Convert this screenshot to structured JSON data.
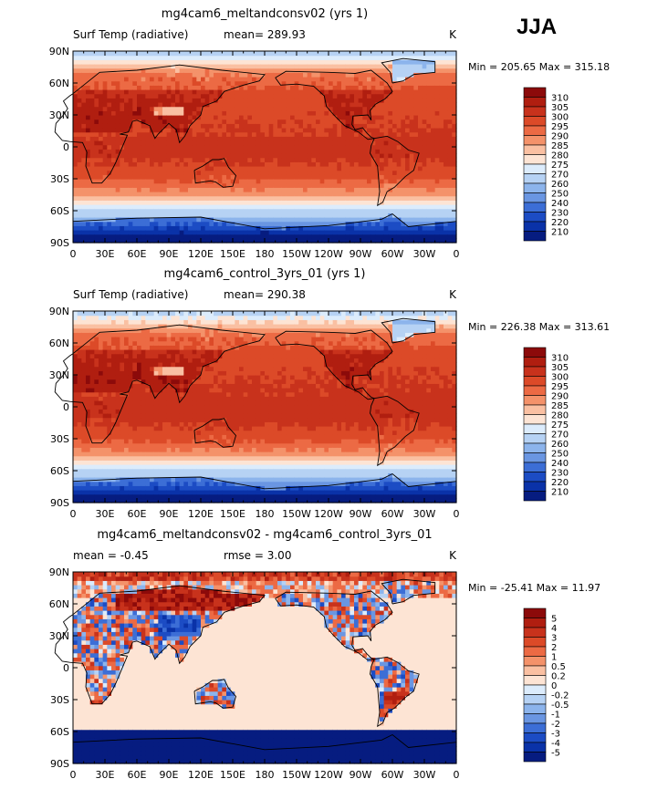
{
  "season": "JJA",
  "chart_data": [
    {
      "type": "heatmap",
      "title": "mg4cam6_meltandconsv02 (yrs 1)",
      "left_label": "Surf Temp (radiative)",
      "stat_label": "mean= 289.93",
      "units": "K",
      "minmax": "Min = 205.65 Max = 315.18",
      "colorbar": {
        "levels": [
          "310",
          "305",
          "300",
          "295",
          "290",
          "285",
          "280",
          "275",
          "270",
          "260",
          "250",
          "240",
          "230",
          "220",
          "210"
        ],
        "colors": [
          "#8c0a0a",
          "#b01e10",
          "#c8321c",
          "#dc4a28",
          "#ec6a44",
          "#f4926a",
          "#fac0a2",
          "#fde4d4",
          "#dcecfc",
          "#b6d2f4",
          "#8cb4ec",
          "#6a96e2",
          "#3c6ed6",
          "#1c4cc4",
          "#0a32a8",
          "#061c80"
        ]
      },
      "xticks": [
        "0",
        "30E",
        "60E",
        "90E",
        "120E",
        "150E",
        "180",
        "150W",
        "120W",
        "90W",
        "60W",
        "30W",
        "0"
      ],
      "yticks": [
        "90N",
        "60N",
        "30N",
        "0",
        "30S",
        "60S",
        "90S"
      ],
      "field": "absolute"
    },
    {
      "type": "heatmap",
      "title": "mg4cam6_control_3yrs_01 (yrs 1)",
      "left_label": "Surf Temp (radiative)",
      "stat_label": "mean= 290.38",
      "units": "K",
      "minmax": "Min = 226.38 Max = 313.61",
      "colorbar": {
        "levels": [
          "310",
          "305",
          "300",
          "295",
          "290",
          "285",
          "280",
          "275",
          "270",
          "260",
          "250",
          "240",
          "230",
          "220",
          "210"
        ],
        "colors": [
          "#8c0a0a",
          "#b01e10",
          "#c8321c",
          "#dc4a28",
          "#ec6a44",
          "#f4926a",
          "#fac0a2",
          "#fde4d4",
          "#dcecfc",
          "#b6d2f4",
          "#8cb4ec",
          "#6a96e2",
          "#3c6ed6",
          "#1c4cc4",
          "#0a32a8",
          "#061c80"
        ]
      },
      "xticks": [
        "0",
        "30E",
        "60E",
        "90E",
        "120E",
        "150E",
        "180",
        "150W",
        "120W",
        "90W",
        "60W",
        "30W",
        "0"
      ],
      "yticks": [
        "90N",
        "60N",
        "30N",
        "0",
        "30S",
        "60S",
        "90S"
      ],
      "field": "absolute"
    },
    {
      "type": "heatmap",
      "title": "mg4cam6_meltandconsv02 - mg4cam6_control_3yrs_01",
      "left_label": "mean =   -0.45",
      "stat_label": "rmse =    3.00",
      "units": "K",
      "minmax": "Min = -25.41 Max =  11.97",
      "colorbar": {
        "levels": [
          "5",
          "4",
          "3",
          "2",
          "1",
          "0.5",
          "0.2",
          "0",
          "-0.2",
          "-0.5",
          "-1",
          "-2",
          "-3",
          "-4",
          "-5"
        ],
        "colors": [
          "#8c0a0a",
          "#b01e10",
          "#c8321c",
          "#dc4a28",
          "#ec6a44",
          "#f4926a",
          "#fac0a2",
          "#fde4d4",
          "#dcecfc",
          "#b6d2f4",
          "#8cb4ec",
          "#6a96e2",
          "#3c6ed6",
          "#1c4cc4",
          "#0a32a8",
          "#061c80"
        ]
      },
      "xticks": [
        "0",
        "30E",
        "60E",
        "90E",
        "120E",
        "150E",
        "180",
        "150W",
        "120W",
        "90W",
        "60W",
        "30W",
        "0"
      ],
      "yticks": [
        "90N",
        "60N",
        "30N",
        "0",
        "30S",
        "60S",
        "90S"
      ],
      "field": "difference"
    }
  ]
}
